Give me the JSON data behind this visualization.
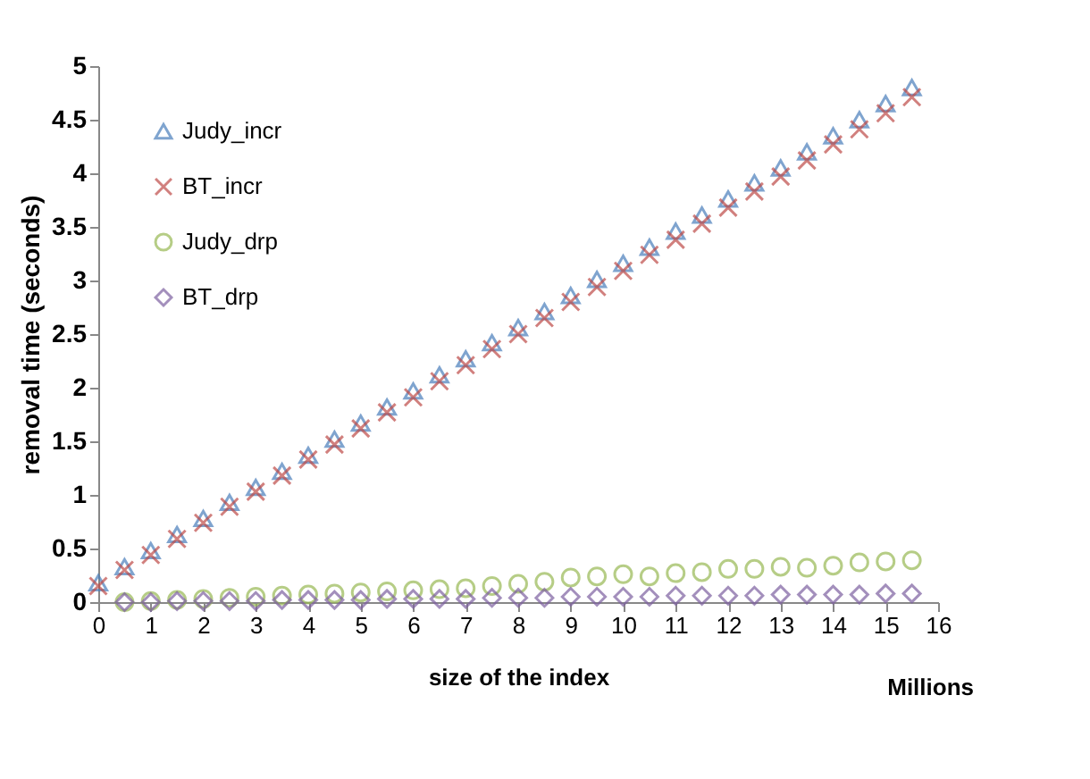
{
  "chart_data": {
    "type": "scatter",
    "ylabel": "removal time (seconds)",
    "xlabel": "size of the index",
    "annotations": [
      "Millions"
    ],
    "xlim": [
      0,
      16
    ],
    "xticks": [
      0,
      1,
      2,
      3,
      4,
      5,
      6,
      7,
      8,
      9,
      10,
      11,
      12,
      13,
      14,
      15,
      16
    ],
    "ylim": [
      0,
      5
    ],
    "yticks": [
      0,
      0.5,
      1,
      1.5,
      2,
      2.5,
      3,
      3.5,
      4,
      4.5,
      5
    ],
    "grid": false,
    "legend": "top left",
    "series": [
      {
        "name": "Judy_incr",
        "color": "#4a7ebb",
        "marker": "triangle",
        "x": [
          0,
          0.5,
          1,
          1.5,
          2,
          2.5,
          3,
          3.5,
          4,
          4.5,
          5,
          5.5,
          6,
          6.5,
          7,
          7.5,
          8,
          8.5,
          9,
          9.5,
          10,
          10.5,
          11,
          11.5,
          12,
          12.5,
          13,
          13.5,
          14,
          14.5,
          15,
          15.5
        ],
        "values": [
          0.18,
          0.33,
          0.48,
          0.63,
          0.78,
          0.93,
          1.07,
          1.22,
          1.37,
          1.52,
          1.67,
          1.82,
          1.97,
          2.12,
          2.27,
          2.42,
          2.56,
          2.71,
          2.86,
          3.01,
          3.16,
          3.31,
          3.46,
          3.61,
          3.76,
          3.91,
          4.05,
          4.2,
          4.35,
          4.5,
          4.65,
          4.8
        ]
      },
      {
        "name": "BT_incr",
        "color": "#be4b48",
        "marker": "cross",
        "x": [
          0,
          0.5,
          1,
          1.5,
          2,
          2.5,
          3,
          3.5,
          4,
          4.5,
          5,
          5.5,
          6,
          6.5,
          7,
          7.5,
          8,
          8.5,
          9,
          9.5,
          10,
          10.5,
          11,
          11.5,
          12,
          12.5,
          13,
          13.5,
          14,
          14.5,
          15,
          15.5
        ],
        "values": [
          0.15,
          0.3,
          0.44,
          0.59,
          0.74,
          0.89,
          1.03,
          1.18,
          1.33,
          1.47,
          1.62,
          1.77,
          1.91,
          2.06,
          2.21,
          2.36,
          2.5,
          2.65,
          2.8,
          2.94,
          3.09,
          3.24,
          3.38,
          3.53,
          3.68,
          3.83,
          3.97,
          4.12,
          4.27,
          4.41,
          4.56,
          4.71
        ]
      },
      {
        "name": "Judy_drp",
        "color": "#98b954",
        "marker": "circle",
        "x": [
          0.5,
          1,
          1.5,
          2,
          2.5,
          3,
          3.5,
          4,
          4.5,
          5,
          5.5,
          6,
          6.5,
          7,
          7.5,
          8,
          8.5,
          9,
          9.5,
          10,
          10.5,
          11,
          11.5,
          12,
          12.5,
          13,
          13.5,
          14,
          14.5,
          15,
          15.5
        ],
        "values": [
          0.0,
          0.01,
          0.02,
          0.03,
          0.04,
          0.05,
          0.06,
          0.07,
          0.08,
          0.09,
          0.1,
          0.11,
          0.12,
          0.13,
          0.15,
          0.17,
          0.19,
          0.23,
          0.24,
          0.26,
          0.24,
          0.27,
          0.28,
          0.31,
          0.31,
          0.33,
          0.32,
          0.34,
          0.37,
          0.38,
          0.39
        ]
      },
      {
        "name": "BT_drp",
        "color": "#7d60a0",
        "marker": "diamond",
        "x": [
          0.5,
          1,
          1.5,
          2,
          2.5,
          3,
          3.5,
          4,
          4.5,
          5,
          5.5,
          6,
          6.5,
          7,
          7.5,
          8,
          8.5,
          9,
          9.5,
          10,
          10.5,
          11,
          11.5,
          12,
          12.5,
          13,
          13.5,
          14,
          14.5,
          15,
          15.5
        ],
        "values": [
          0.0,
          0.0,
          0.01,
          0.01,
          0.01,
          0.01,
          0.02,
          0.02,
          0.02,
          0.02,
          0.03,
          0.03,
          0.03,
          0.03,
          0.04,
          0.04,
          0.04,
          0.05,
          0.05,
          0.05,
          0.05,
          0.06,
          0.06,
          0.06,
          0.06,
          0.07,
          0.07,
          0.07,
          0.07,
          0.08,
          0.08
        ]
      }
    ]
  }
}
